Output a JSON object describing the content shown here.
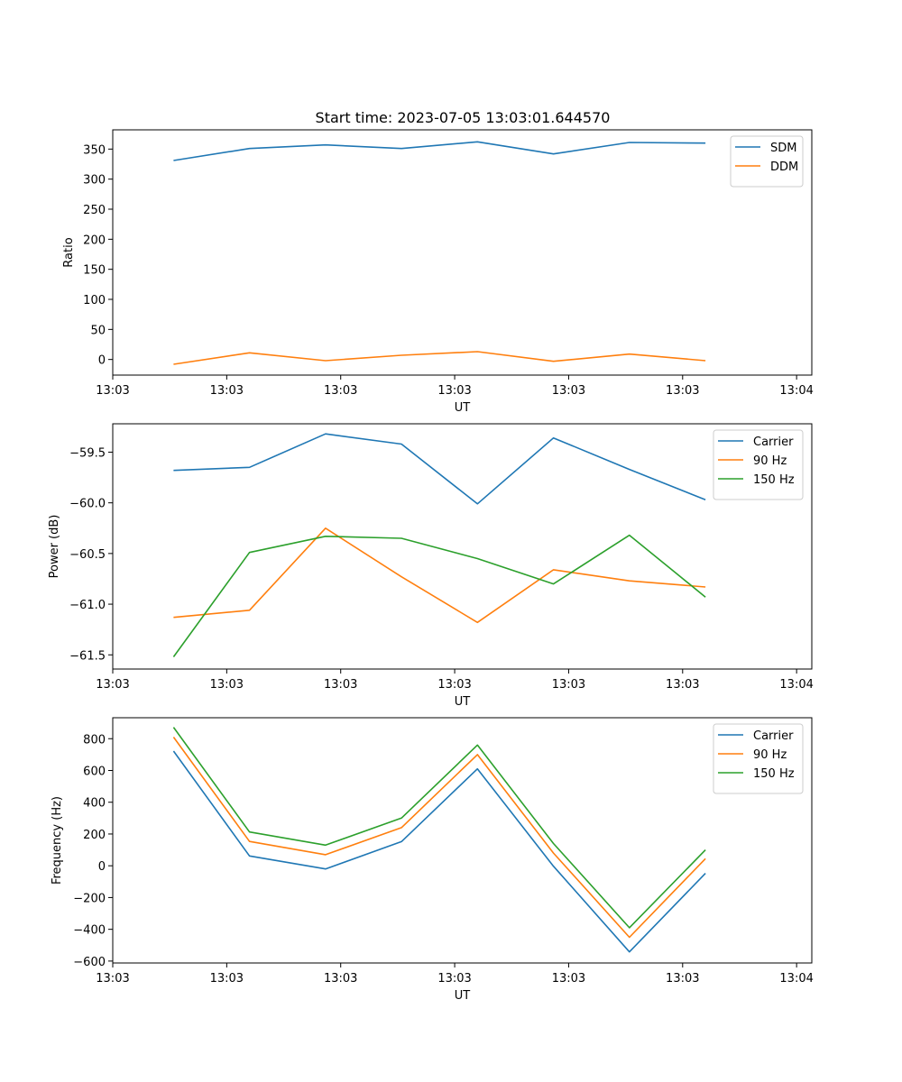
{
  "figure_title": "Start time: 2023-07-05 13:03:01.644570",
  "chart_data": [
    {
      "type": "line",
      "title": "Start time: 2023-07-05 13:03:01.644570",
      "xlabel": "UT",
      "ylabel": "Ratio",
      "x": [
        1,
        2,
        3,
        4,
        5,
        6,
        7,
        8
      ],
      "xlim": [
        0.2,
        9.4
      ],
      "xticks": [
        0.2,
        1.7,
        3.2,
        4.7,
        6.2,
        7.7,
        9.2
      ],
      "xtick_labels": [
        "13:03",
        "13:03",
        "13:03",
        "13:03",
        "13:03",
        "13:03",
        "13:04"
      ],
      "ylim": [
        -26,
        382
      ],
      "yticks": [
        0,
        50,
        100,
        150,
        200,
        250,
        300,
        350
      ],
      "ytick_labels": [
        "0",
        "50",
        "100",
        "150",
        "200",
        "250",
        "300",
        "350"
      ],
      "legend_position": "top-right",
      "series": [
        {
          "name": "SDM",
          "color": "#1f77b4",
          "values": [
            331,
            351,
            357,
            351,
            362,
            342,
            361,
            360
          ]
        },
        {
          "name": "DDM",
          "color": "#ff7f0e",
          "values": [
            -8,
            11,
            -2,
            7,
            13,
            -3,
            9,
            -2
          ]
        }
      ]
    },
    {
      "type": "line",
      "xlabel": "UT",
      "ylabel": "Power (dB)",
      "x": [
        1,
        2,
        3,
        4,
        5,
        6,
        7,
        8
      ],
      "xlim": [
        0.2,
        9.4
      ],
      "xticks": [
        0.2,
        1.7,
        3.2,
        4.7,
        6.2,
        7.7,
        9.2
      ],
      "xtick_labels": [
        "13:03",
        "13:03",
        "13:03",
        "13:03",
        "13:03",
        "13:03",
        "13:04"
      ],
      "ylim": [
        -61.64,
        -59.22
      ],
      "yticks": [
        -61.5,
        -61.0,
        -60.5,
        -60.0,
        -59.5
      ],
      "ytick_labels": [
        "−61.5",
        "−61.0",
        "−60.5",
        "−60.0",
        "−59.5"
      ],
      "legend_position": "top-right",
      "series": [
        {
          "name": "Carrier",
          "color": "#1f77b4",
          "values": [
            -59.68,
            -59.65,
            -59.32,
            -59.42,
            -60.01,
            -59.36,
            -59.67,
            -59.97
          ]
        },
        {
          "name": "90 Hz",
          "color": "#ff7f0e",
          "values": [
            -61.13,
            -61.06,
            -60.25,
            -60.73,
            -61.18,
            -60.66,
            -60.77,
            -60.83
          ]
        },
        {
          "name": "150 Hz",
          "color": "#2ca02c",
          "values": [
            -61.52,
            -60.49,
            -60.33,
            -60.35,
            -60.55,
            -60.8,
            -60.32,
            -60.93
          ]
        }
      ]
    },
    {
      "type": "line",
      "xlabel": "UT",
      "ylabel": "Frequency (Hz)",
      "x": [
        1,
        2,
        3,
        4,
        5,
        6,
        7,
        8
      ],
      "xlim": [
        0.2,
        9.4
      ],
      "xticks": [
        0.2,
        1.7,
        3.2,
        4.7,
        6.2,
        7.7,
        9.2
      ],
      "xtick_labels": [
        "13:03",
        "13:03",
        "13:03",
        "13:03",
        "13:03",
        "13:03",
        "13:04"
      ],
      "ylim": [
        -612,
        932
      ],
      "yticks": [
        -600,
        -400,
        -200,
        0,
        200,
        400,
        600,
        800
      ],
      "ytick_labels": [
        "−600",
        "−400",
        "−200",
        "0",
        "200",
        "400",
        "600",
        "800"
      ],
      "legend_position": "top-right",
      "series": [
        {
          "name": "Carrier",
          "color": "#1f77b4",
          "values": [
            722,
            62,
            -20,
            152,
            610,
            -3,
            -542,
            -48
          ]
        },
        {
          "name": "90 Hz",
          "color": "#ff7f0e",
          "values": [
            810,
            153,
            70,
            240,
            700,
            80,
            -450,
            45
          ]
        },
        {
          "name": "150 Hz",
          "color": "#2ca02c",
          "values": [
            872,
            213,
            130,
            300,
            760,
            140,
            -390,
            100
          ]
        }
      ]
    }
  ]
}
